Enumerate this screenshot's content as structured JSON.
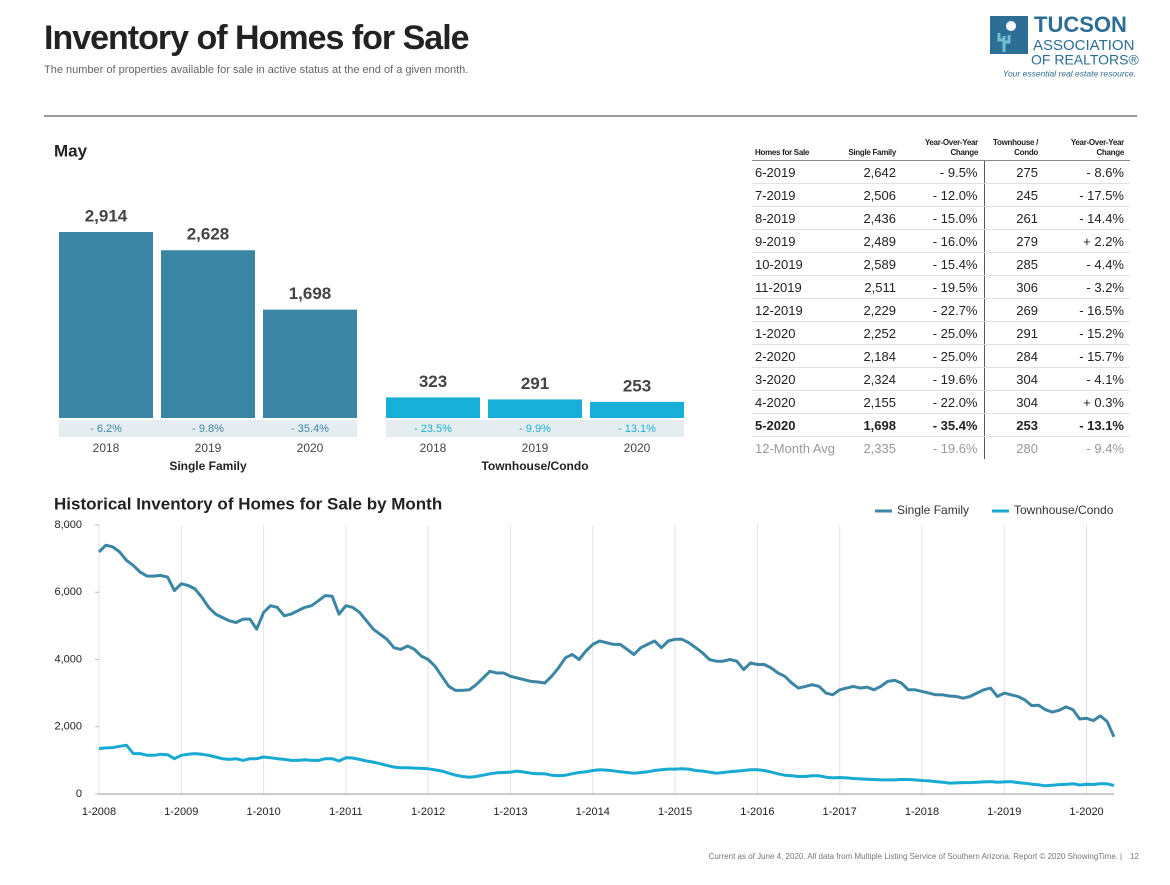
{
  "header": {
    "title": "Inventory of Homes for Sale",
    "subtitle": "The number of properties available for sale in active status at the end of a given month.",
    "logo": {
      "line1": "TUCSON",
      "line2": "ASSOCIATION",
      "line3": "OF REALTORS®",
      "tagline": "Your essential real estate resource."
    }
  },
  "chart_data": [
    {
      "type": "bar",
      "title": "May",
      "categories": [
        "2018",
        "2019",
        "2020"
      ],
      "series": [
        {
          "name": "Single Family",
          "color": "#3b86a4",
          "values": [
            2914,
            2628,
            1698
          ],
          "value_labels": [
            "2,914",
            "2,628",
            "1,698"
          ],
          "change_labels": [
            "- 6.2%",
            "- 9.8%",
            "- 35.4%"
          ]
        },
        {
          "name": "Townhouse/Condo",
          "color": "#18b0d8",
          "values": [
            323,
            291,
            253
          ],
          "change_labels": [
            "- 23.5%",
            "- 9.9%",
            "- 13.1%"
          ]
        }
      ]
    },
    {
      "type": "line",
      "title": "Historical Inventory of Homes for Sale by Month",
      "legend": "top-right",
      "grid": true,
      "categories": [
        "1-2008",
        null,
        null,
        null,
        null,
        null,
        null,
        null,
        null,
        null,
        null,
        null,
        "1-2009",
        null,
        null,
        null,
        null,
        null,
        null,
        null,
        null,
        null,
        null,
        null,
        "1-2010",
        null,
        null,
        null,
        null,
        null,
        null,
        null,
        null,
        null,
        null,
        null,
        "1-2011",
        null,
        null,
        null,
        null,
        null,
        null,
        null,
        null,
        null,
        null,
        null,
        "1-2012",
        null,
        null,
        null,
        null,
        null,
        null,
        null,
        null,
        null,
        null,
        null,
        "1-2013",
        null,
        null,
        null,
        null,
        null,
        null,
        null,
        null,
        null,
        null,
        null,
        "1-2014",
        null,
        null,
        null,
        null,
        null,
        null,
        null,
        null,
        null,
        null,
        null,
        "1-2015",
        null,
        null,
        null,
        null,
        null,
        null,
        null,
        null,
        null,
        null,
        null,
        "1-2016",
        null,
        null,
        null,
        null,
        null,
        null,
        null,
        null,
        null,
        null,
        null,
        "1-2017",
        null,
        null,
        null,
        null,
        null,
        null,
        null,
        null,
        null,
        null,
        null,
        "1-2018",
        null,
        null,
        null,
        null,
        null,
        null,
        null,
        null,
        null,
        null,
        null,
        "1-2019",
        null,
        null,
        null,
        null,
        null,
        null,
        null,
        null,
        null,
        null,
        null,
        "1-2020",
        null,
        null,
        null,
        null
      ],
      "ylim": [
        0,
        8000
      ],
      "yticks": [
        0,
        {
          "value": 2000,
          "label": "2,000"
        },
        {
          "value": 4000,
          "label": "4,000"
        },
        {
          "value": 6000,
          "label": "6,000"
        },
        {
          "value": 8000,
          "label": "8,000"
        }
      ],
      "series": [
        {
          "name": "Single Family",
          "color": "#3b86a4",
          "values": [
            7200,
            7400,
            7350,
            7200,
            6950,
            6800,
            6600,
            6480,
            6480,
            6500,
            6450,
            6050,
            6250,
            6200,
            6100,
            5850,
            5550,
            5350,
            5250,
            5150,
            5100,
            5200,
            5200,
            4900,
            5400,
            5600,
            5550,
            5300,
            5350,
            5450,
            5550,
            5600,
            5750,
            5900,
            5880,
            5350,
            5600,
            5550,
            5400,
            5150,
            4900,
            4750,
            4600,
            4350,
            4300,
            4400,
            4300,
            4100,
            4000,
            3800,
            3500,
            3200,
            3080,
            3080,
            3100,
            3250,
            3450,
            3650,
            3600,
            3600,
            3500,
            3450,
            3400,
            3350,
            3330,
            3300,
            3500,
            3750,
            4050,
            4150,
            4000,
            4250,
            4450,
            4550,
            4500,
            4450,
            4450,
            4300,
            4150,
            4350,
            4450,
            4550,
            4350,
            4550,
            4600,
            4600,
            4500,
            4350,
            4200,
            4000,
            3950,
            3950,
            4000,
            3950,
            3700,
            3900,
            3850,
            3850,
            3750,
            3600,
            3500,
            3300,
            3150,
            3200,
            3250,
            3200,
            3000,
            2950,
            3100,
            3150,
            3200,
            3150,
            3180,
            3100,
            3200,
            3350,
            3380,
            3300,
            3100,
            3100,
            3050,
            3000,
            2950,
            2950,
            2914,
            2900,
            2850,
            2900,
            3000,
            3100,
            3150,
            2900,
            3000,
            2950,
            2900,
            2800,
            2628,
            2642,
            2506,
            2436,
            2489,
            2589,
            2511,
            2229,
            2252,
            2184,
            2324,
            2155,
            1698
          ]
        },
        {
          "name": "Townhouse/Condo",
          "color": "#18aad3",
          "values": [
            1350,
            1370,
            1380,
            1420,
            1450,
            1200,
            1200,
            1150,
            1150,
            1180,
            1170,
            1050,
            1150,
            1180,
            1200,
            1180,
            1150,
            1100,
            1050,
            1030,
            1050,
            1000,
            1050,
            1050,
            1100,
            1080,
            1050,
            1030,
            1000,
            1000,
            1020,
            1000,
            1000,
            1050,
            1050,
            980,
            1080,
            1070,
            1030,
            980,
            950,
            900,
            850,
            800,
            780,
            780,
            770,
            760,
            750,
            720,
            680,
            620,
            560,
            520,
            500,
            520,
            560,
            600,
            630,
            640,
            650,
            680,
            650,
            620,
            600,
            600,
            560,
            540,
            560,
            600,
            640,
            660,
            700,
            720,
            710,
            690,
            660,
            640,
            620,
            640,
            660,
            700,
            720,
            740,
            740,
            750,
            740,
            700,
            680,
            650,
            620,
            640,
            660,
            680,
            700,
            720,
            720,
            700,
            650,
            600,
            560,
            540,
            520,
            520,
            540,
            540,
            500,
            480,
            490,
            480,
            460,
            450,
            440,
            430,
            420,
            420,
            420,
            430,
            430,
            420,
            400,
            390,
            370,
            350,
            323,
            330,
            340,
            340,
            350,
            360,
            370,
            350,
            360,
            370,
            340,
            320,
            291,
            275,
            245,
            261,
            279,
            285,
            306,
            269,
            291,
            284,
            304,
            304,
            253
          ]
        }
      ]
    }
  ],
  "table": {
    "headers": [
      "Homes for Sale",
      "Single Family",
      "Year-Over-Year Change",
      "Townhouse / Condo",
      "Year-Over-Year Change"
    ],
    "rows": [
      [
        "6-2019",
        "2,642",
        "- 9.5%",
        "275",
        "- 8.6%"
      ],
      [
        "7-2019",
        "2,506",
        "- 12.0%",
        "245",
        "- 17.5%"
      ],
      [
        "8-2019",
        "2,436",
        "- 15.0%",
        "261",
        "- 14.4%"
      ],
      [
        "9-2019",
        "2,489",
        "- 16.0%",
        "279",
        "+ 2.2%"
      ],
      [
        "10-2019",
        "2,589",
        "- 15.4%",
        "285",
        "- 4.4%"
      ],
      [
        "11-2019",
        "2,511",
        "- 19.5%",
        "306",
        "- 3.2%"
      ],
      [
        "12-2019",
        "2,229",
        "- 22.7%",
        "269",
        "- 16.5%"
      ],
      [
        "1-2020",
        "2,252",
        "- 25.0%",
        "291",
        "- 15.2%"
      ],
      [
        "2-2020",
        "2,184",
        "- 25.0%",
        "284",
        "- 15.7%"
      ],
      [
        "3-2020",
        "2,324",
        "- 19.6%",
        "304",
        "- 4.1%"
      ],
      [
        "4-2020",
        "2,155",
        "- 22.0%",
        "304",
        "+ 0.3%"
      ],
      [
        "5-2020",
        "1,698",
        "- 35.4%",
        "253",
        "- 13.1%"
      ],
      [
        "12-Month Avg",
        "2,335",
        "- 19.6%",
        "280",
        "- 9.4%"
      ]
    ]
  },
  "footer": {
    "note": "Current as of June 4, 2020. All data from Multiple Listing Service of Southern Arizona. Report © 2020 ShowingTime.",
    "page": "12"
  }
}
